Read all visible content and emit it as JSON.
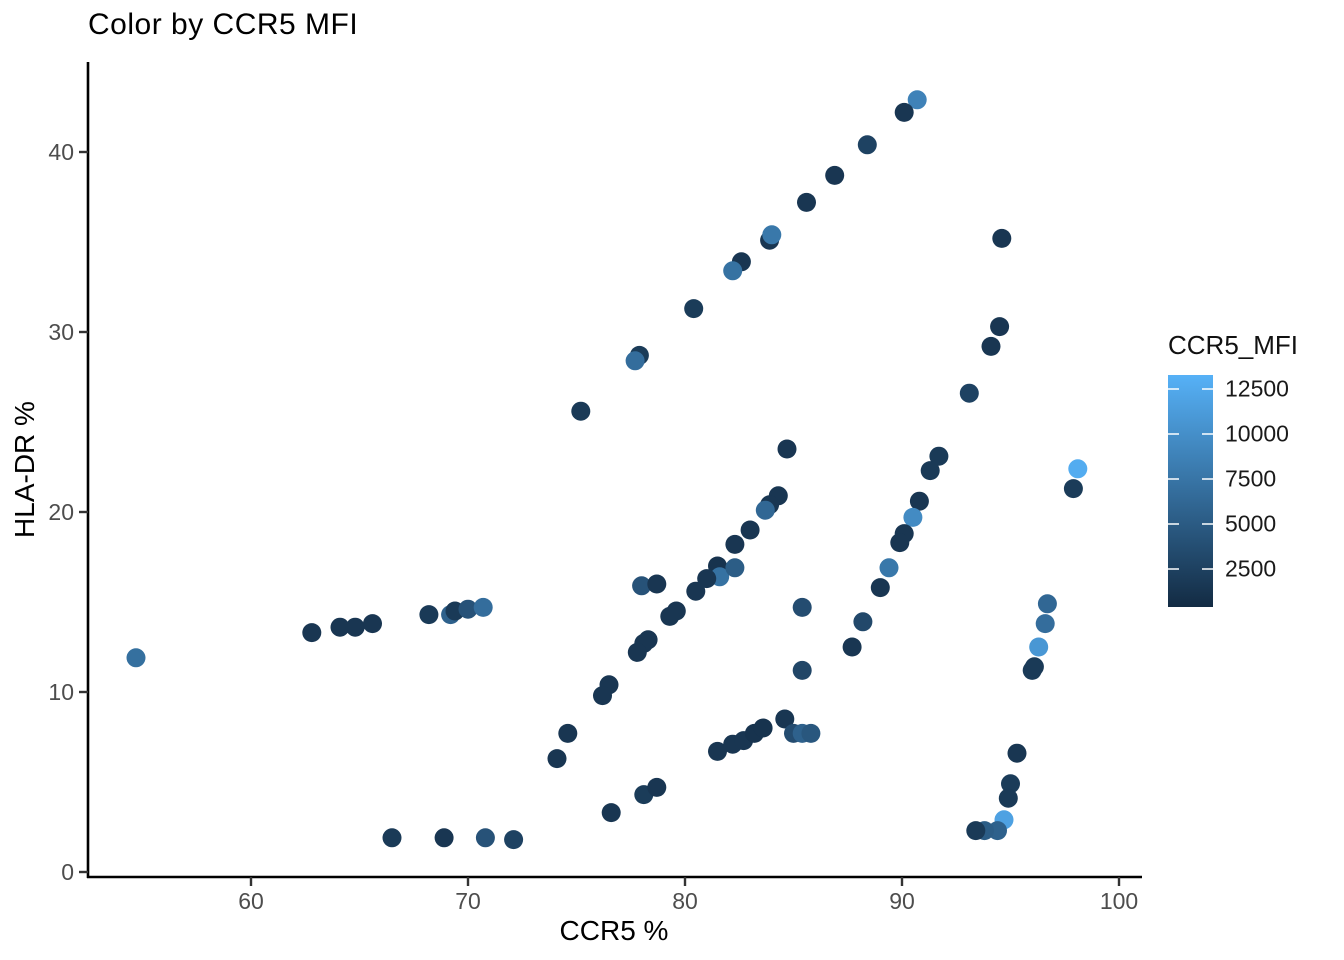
{
  "title": "Color by CCR5 MFI",
  "chart_data": {
    "type": "scatter",
    "title": "Color by CCR5 MFI",
    "xlabel": "CCR5 %",
    "ylabel": "HLA-DR %",
    "xlim": [
      52.5,
      101
    ],
    "ylim": [
      0,
      45
    ],
    "x_ticks": [
      60,
      70,
      80,
      90,
      100
    ],
    "y_ticks": [
      0,
      10,
      20,
      30,
      40
    ],
    "grid": false,
    "legend": {
      "title": "CCR5_MFI",
      "ticks": [
        2500,
        5000,
        7500,
        10000,
        12500
      ],
      "domain": [
        400,
        13300
      ],
      "color_low": "#132B43",
      "color_high": "#56B1F7",
      "position": "right"
    },
    "series_name": "CCR5_MFI",
    "points": [
      [
        90.7,
        42.9,
        8800
      ],
      [
        90.1,
        42.2,
        1500
      ],
      [
        88.4,
        40.4,
        2600
      ],
      [
        86.9,
        38.7,
        1500
      ],
      [
        85.6,
        37.2,
        1500
      ],
      [
        83.9,
        35.1,
        1500
      ],
      [
        84.0,
        35.4,
        7800
      ],
      [
        82.6,
        33.9,
        1500
      ],
      [
        82.2,
        33.4,
        7200
      ],
      [
        80.4,
        31.3,
        2000
      ],
      [
        77.9,
        28.7,
        2000
      ],
      [
        77.7,
        28.4,
        6800
      ],
      [
        75.2,
        25.6,
        1800
      ],
      [
        94.6,
        35.2,
        1500
      ],
      [
        94.5,
        30.3,
        1500
      ],
      [
        94.1,
        29.2,
        1500
      ],
      [
        93.1,
        26.6,
        2600
      ],
      [
        98.1,
        22.4,
        12800
      ],
      [
        97.9,
        21.3,
        2000
      ],
      [
        84.7,
        23.5,
        1500
      ],
      [
        84.3,
        20.9,
        1500
      ],
      [
        83.9,
        20.4,
        1500
      ],
      [
        83.7,
        20.1,
        6200
      ],
      [
        83.0,
        19.0,
        1500
      ],
      [
        82.3,
        18.2,
        1500
      ],
      [
        81.5,
        17.0,
        1200
      ],
      [
        81.6,
        16.4,
        7200
      ],
      [
        82.3,
        16.9,
        5200
      ],
      [
        81.0,
        16.3,
        1500
      ],
      [
        80.5,
        15.6,
        1500
      ],
      [
        78.0,
        15.9,
        4200
      ],
      [
        78.7,
        16.0,
        1500
      ],
      [
        79.6,
        14.5,
        1500
      ],
      [
        79.3,
        14.2,
        1500
      ],
      [
        78.3,
        12.9,
        1500
      ],
      [
        78.1,
        12.7,
        1500
      ],
      [
        77.8,
        12.2,
        1500
      ],
      [
        76.5,
        10.4,
        1500
      ],
      [
        76.2,
        9.8,
        1500
      ],
      [
        74.6,
        7.7,
        1500
      ],
      [
        74.1,
        6.3,
        1500
      ],
      [
        89.4,
        16.9,
        7800
      ],
      [
        89.0,
        15.8,
        1500
      ],
      [
        85.4,
        14.7,
        3600
      ],
      [
        88.2,
        13.9,
        3200
      ],
      [
        87.7,
        12.5,
        1500
      ],
      [
        85.4,
        11.2,
        3000
      ],
      [
        90.8,
        20.6,
        1500
      ],
      [
        90.5,
        19.7,
        9600
      ],
      [
        90.1,
        18.8,
        1500
      ],
      [
        89.9,
        18.3,
        1500
      ],
      [
        91.7,
        23.1,
        1800
      ],
      [
        91.3,
        22.3,
        1800
      ],
      [
        81.5,
        6.7,
        1500
      ],
      [
        82.2,
        7.1,
        1500
      ],
      [
        82.7,
        7.3,
        1500
      ],
      [
        83.2,
        7.7,
        1200
      ],
      [
        83.6,
        8.0,
        1200
      ],
      [
        84.6,
        8.5,
        1500
      ],
      [
        85.0,
        7.7,
        3600
      ],
      [
        85.4,
        7.7,
        5600
      ],
      [
        85.8,
        7.7,
        4600
      ],
      [
        66.5,
        1.9,
        1800
      ],
      [
        68.9,
        1.9,
        1500
      ],
      [
        70.8,
        1.9,
        4200
      ],
      [
        72.1,
        1.8,
        2600
      ],
      [
        76.6,
        3.3,
        1500
      ],
      [
        78.1,
        4.3,
        2000
      ],
      [
        78.7,
        4.7,
        1500
      ],
      [
        54.7,
        11.9,
        7000
      ],
      [
        62.8,
        13.3,
        1500
      ],
      [
        64.1,
        13.6,
        1500
      ],
      [
        64.8,
        13.6,
        1500
      ],
      [
        65.6,
        13.8,
        1500
      ],
      [
        68.2,
        14.3,
        1800
      ],
      [
        69.2,
        14.3,
        5600
      ],
      [
        69.4,
        14.5,
        1800
      ],
      [
        70.0,
        14.6,
        4200
      ],
      [
        70.7,
        14.7,
        6800
      ],
      [
        96.7,
        14.9,
        6200
      ],
      [
        96.6,
        13.8,
        6800
      ],
      [
        96.3,
        12.5,
        10800
      ],
      [
        96.1,
        11.4,
        1800
      ],
      [
        96.0,
        11.2,
        1800
      ],
      [
        95.3,
        6.6,
        1500
      ],
      [
        95.0,
        4.9,
        2000
      ],
      [
        94.9,
        4.1,
        1800
      ],
      [
        94.7,
        2.9,
        11800
      ],
      [
        94.4,
        2.3,
        5600
      ],
      [
        93.8,
        2.3,
        5200
      ],
      [
        93.4,
        2.3,
        1800
      ]
    ]
  }
}
